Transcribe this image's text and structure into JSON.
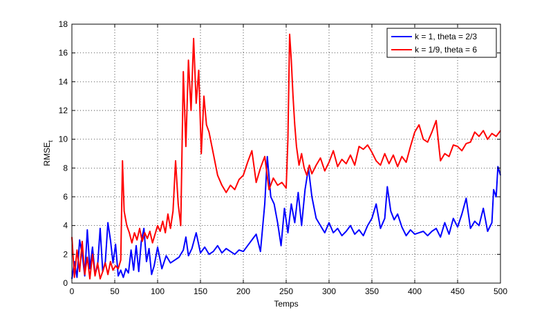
{
  "chart_data": {
    "type": "line",
    "title": "",
    "xlabel": "Temps",
    "ylabel": "RMSE",
    "ylabel_subscript": "t",
    "xlim": [
      0,
      500
    ],
    "ylim": [
      0,
      18
    ],
    "xticks": [
      0,
      50,
      100,
      150,
      200,
      250,
      300,
      350,
      400,
      450,
      500
    ],
    "yticks": [
      0,
      2,
      4,
      6,
      8,
      10,
      12,
      14,
      16,
      18
    ],
    "grid": true,
    "legend_position": "top-right",
    "series": [
      {
        "name": "k = 1, theta = 2/3",
        "color": "#0000ff",
        "x": [
          0,
          3,
          6,
          9,
          12,
          15,
          18,
          21,
          24,
          27,
          30,
          33,
          36,
          39,
          42,
          45,
          48,
          51,
          54,
          57,
          60,
          63,
          66,
          69,
          72,
          75,
          78,
          81,
          84,
          87,
          90,
          93,
          96,
          100,
          105,
          110,
          115,
          120,
          125,
          130,
          133,
          136,
          140,
          145,
          150,
          155,
          160,
          165,
          170,
          175,
          180,
          185,
          190,
          195,
          200,
          205,
          210,
          215,
          220,
          225,
          228,
          232,
          236,
          240,
          244,
          248,
          252,
          256,
          260,
          264,
          268,
          272,
          276,
          280,
          285,
          290,
          295,
          300,
          305,
          310,
          315,
          320,
          325,
          330,
          335,
          340,
          345,
          350,
          355,
          360,
          365,
          368,
          372,
          376,
          380,
          385,
          390,
          395,
          400,
          405,
          410,
          415,
          420,
          425,
          430,
          435,
          440,
          445,
          450,
          455,
          460,
          465,
          470,
          475,
          480,
          485,
          490,
          492,
          495,
          497,
          500
        ],
        "values": [
          0.3,
          1.5,
          0.4,
          3.0,
          2.0,
          0.5,
          3.7,
          1.0,
          2.5,
          0.6,
          1.2,
          3.8,
          0.8,
          1.5,
          4.2,
          3.0,
          1.4,
          2.7,
          0.5,
          0.9,
          0.4,
          1.0,
          0.7,
          2.3,
          0.9,
          2.6,
          0.8,
          2.9,
          3.8,
          1.5,
          2.4,
          0.6,
          1.2,
          2.5,
          1.0,
          1.9,
          1.4,
          1.6,
          1.8,
          2.3,
          3.2,
          1.9,
          2.4,
          3.5,
          2.1,
          2.5,
          2.0,
          2.2,
          2.6,
          2.1,
          2.4,
          2.2,
          2.0,
          2.3,
          2.2,
          2.6,
          3.0,
          3.4,
          2.2,
          5.5,
          8.8,
          6.0,
          5.5,
          4.2,
          2.6,
          5.2,
          3.5,
          5.5,
          4.2,
          6.3,
          4.0,
          6.5,
          8.0,
          6.0,
          4.5,
          4.0,
          3.5,
          4.2,
          3.5,
          3.8,
          3.3,
          3.6,
          4.0,
          3.4,
          3.7,
          3.3,
          4.0,
          4.5,
          5.5,
          3.8,
          4.5,
          6.7,
          5.0,
          4.4,
          4.8,
          3.9,
          3.3,
          3.7,
          3.4,
          3.5,
          3.6,
          3.3,
          3.6,
          3.8,
          3.2,
          4.2,
          3.4,
          4.5,
          3.9,
          4.8,
          5.9,
          3.8,
          4.3,
          4.0,
          5.2,
          3.6,
          4.2,
          6.5,
          6.0,
          8.1,
          7.5
        ]
      },
      {
        "name": "k = 1/9, theta = 6",
        "color": "#ff0000",
        "x": [
          0,
          3,
          6,
          9,
          12,
          15,
          18,
          21,
          24,
          27,
          30,
          33,
          36,
          39,
          42,
          45,
          48,
          51,
          54,
          57,
          59,
          61,
          64,
          67,
          70,
          73,
          76,
          79,
          82,
          85,
          88,
          91,
          94,
          97,
          100,
          103,
          106,
          109,
          112,
          115,
          118,
          121,
          124,
          127,
          130,
          133,
          136,
          139,
          142,
          145,
          148,
          151,
          154,
          157,
          160,
          165,
          170,
          175,
          180,
          185,
          190,
          195,
          200,
          205,
          210,
          215,
          220,
          225,
          230,
          235,
          240,
          245,
          250,
          252,
          254,
          256,
          258,
          260,
          262,
          265,
          268,
          271,
          274,
          277,
          280,
          285,
          290,
          295,
          300,
          305,
          310,
          315,
          320,
          325,
          330,
          335,
          340,
          345,
          350,
          355,
          360,
          365,
          370,
          375,
          380,
          385,
          390,
          395,
          400,
          405,
          410,
          415,
          420,
          425,
          430,
          435,
          440,
          445,
          450,
          455,
          460,
          465,
          470,
          475,
          480,
          485,
          490,
          495,
          500
        ],
        "values": [
          3.2,
          0.4,
          2.3,
          0.8,
          2.9,
          0.6,
          1.8,
          0.3,
          2.0,
          0.5,
          1.4,
          0.3,
          0.8,
          1.4,
          0.6,
          1.5,
          0.9,
          1.2,
          1.0,
          1.6,
          8.5,
          5.0,
          4.0,
          3.5,
          2.8,
          3.5,
          3.0,
          3.8,
          2.9,
          3.5,
          3.1,
          3.6,
          2.8,
          3.4,
          4.0,
          3.6,
          4.3,
          3.5,
          4.8,
          3.8,
          5.0,
          8.5,
          5.5,
          4.0,
          14.7,
          9.5,
          15.5,
          12.0,
          17.0,
          12.5,
          14.8,
          9.0,
          13.0,
          11.0,
          10.5,
          9.0,
          7.5,
          6.8,
          6.3,
          6.8,
          6.5,
          7.2,
          7.5,
          8.4,
          9.2,
          7.0,
          8.0,
          8.8,
          6.5,
          7.3,
          6.8,
          7.0,
          6.6,
          10.0,
          17.3,
          15.5,
          13.0,
          11.0,
          9.5,
          8.2,
          9.0,
          8.0,
          7.5,
          8.2,
          7.6,
          8.2,
          8.7,
          7.8,
          8.4,
          9.2,
          8.1,
          8.6,
          8.3,
          8.9,
          8.2,
          9.5,
          9.3,
          9.6,
          9.1,
          8.5,
          8.2,
          9.0,
          8.3,
          8.9,
          8.1,
          8.8,
          8.4,
          9.5,
          10.5,
          11.0,
          10.0,
          9.8,
          10.5,
          11.3,
          8.5,
          9.0,
          8.8,
          9.6,
          9.5,
          9.2,
          9.7,
          9.8,
          10.5,
          10.2,
          10.6,
          10.0,
          10.4,
          10.2,
          10.6
        ]
      }
    ]
  }
}
